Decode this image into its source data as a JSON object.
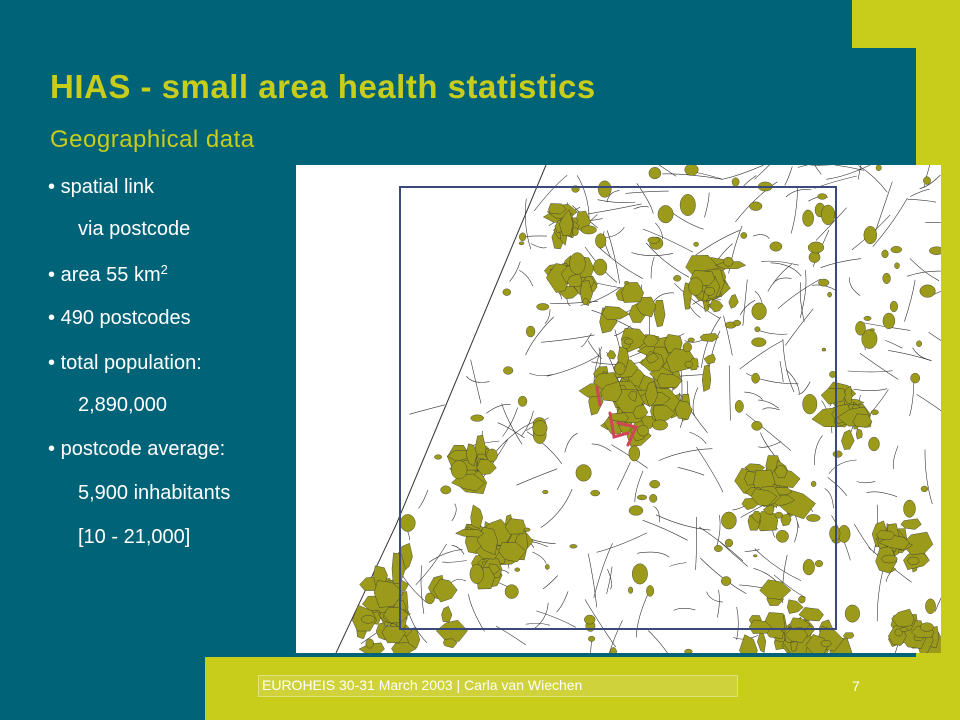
{
  "title": "HIAS - small area health statistics",
  "subtitle": "Geographical data",
  "bullets": {
    "b1": "spatial link",
    "b1_sub": "via postcode",
    "b2_prefix": "area 55 km",
    "b2_sup": "2",
    "b3": "490 postcodes",
    "b4": "total population:",
    "b4_sub": "2,890,000",
    "b5": "postcode average:",
    "b5_sub1": "5,900 inhabitants",
    "b5_sub2": "[10 - 21,000]"
  },
  "bullet_char": "•",
  "footer": {
    "text": "EUROHEIS 30-31 March 2003  | Carla van Wiechen",
    "page": "7"
  },
  "colors": {
    "background": "#006378",
    "accent": "#c8cc1b",
    "map_fill": "#9b9a1a",
    "map_frame": "#3a4a7a",
    "annotation": "#d0455a"
  }
}
